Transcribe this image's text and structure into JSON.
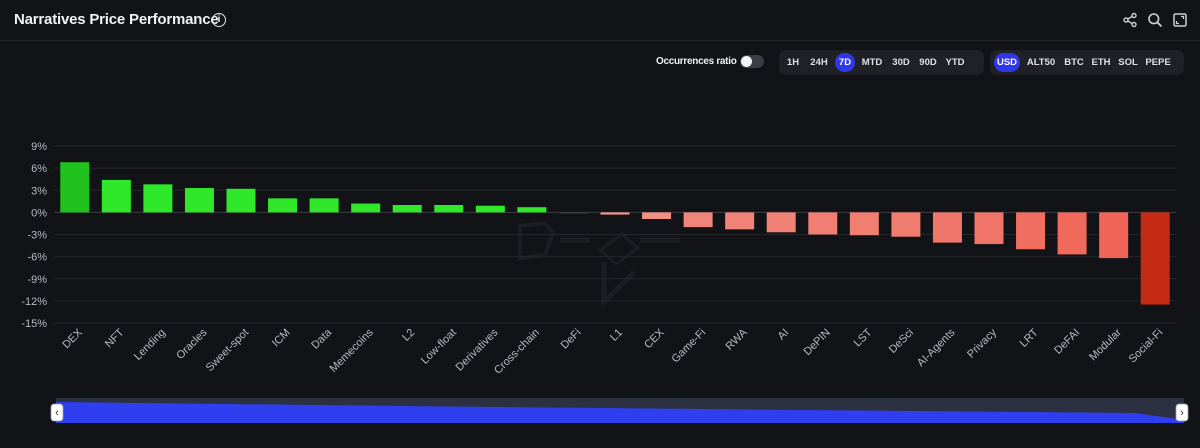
{
  "header": {
    "title": "Narratives Price Performance",
    "info_glyph": "i"
  },
  "controls": {
    "occurrences_label": "Occurrences ratio",
    "occurrences_on": false,
    "timeframes": [
      "1H",
      "24H",
      "7D",
      "MTD",
      "30D",
      "90D",
      "YTD"
    ],
    "timeframe_selected": "7D",
    "currencies": [
      "USD",
      "ALT50",
      "BTC",
      "ETH",
      "SOL",
      "PEPE"
    ],
    "currency_selected": "USD"
  },
  "colors": {
    "accent": "#2f37e6",
    "positive_strong": "#21c21e",
    "positive": "#2fe82a",
    "negative": "#f08a7c",
    "negative_strong": "#c42a14"
  },
  "chart_data": {
    "type": "bar",
    "title": "",
    "xlabel": "",
    "ylabel": "",
    "ylim": [
      -15,
      9
    ],
    "yticks": [
      9,
      6,
      3,
      0,
      -3,
      -6,
      -9,
      -12,
      -15
    ],
    "ytick_labels": [
      "9%",
      "6%",
      "3%",
      "0%",
      "-3%",
      "-6%",
      "-9%",
      "-12%",
      "-15%"
    ],
    "grid": true,
    "categories": [
      "DEX",
      "NFT",
      "Lending",
      "Oracles",
      "Sweet-spot",
      "ICM",
      "Data",
      "Memecoins",
      "L2",
      "Low-float",
      "Derivatives",
      "Cross-chain",
      "DeFi",
      "L1",
      "CEX",
      "Game-Fi",
      "RWA",
      "AI",
      "DePIN",
      "LST",
      "DeSci",
      "AI-Agents",
      "Privacy",
      "LRT",
      "DeFAI",
      "Modular",
      "Social-Fi"
    ],
    "values": [
      6.8,
      4.4,
      3.8,
      3.3,
      3.2,
      1.9,
      1.9,
      1.2,
      1.0,
      1.0,
      0.9,
      0.7,
      -0.1,
      -0.3,
      -0.9,
      -2.0,
      -2.3,
      -2.7,
      -3.0,
      -3.1,
      -3.3,
      -4.1,
      -4.3,
      -5.0,
      -5.7,
      -6.2,
      -12.5
    ]
  },
  "navigator": {
    "left_handle_glyph": "‹",
    "right_handle_glyph": "›"
  }
}
